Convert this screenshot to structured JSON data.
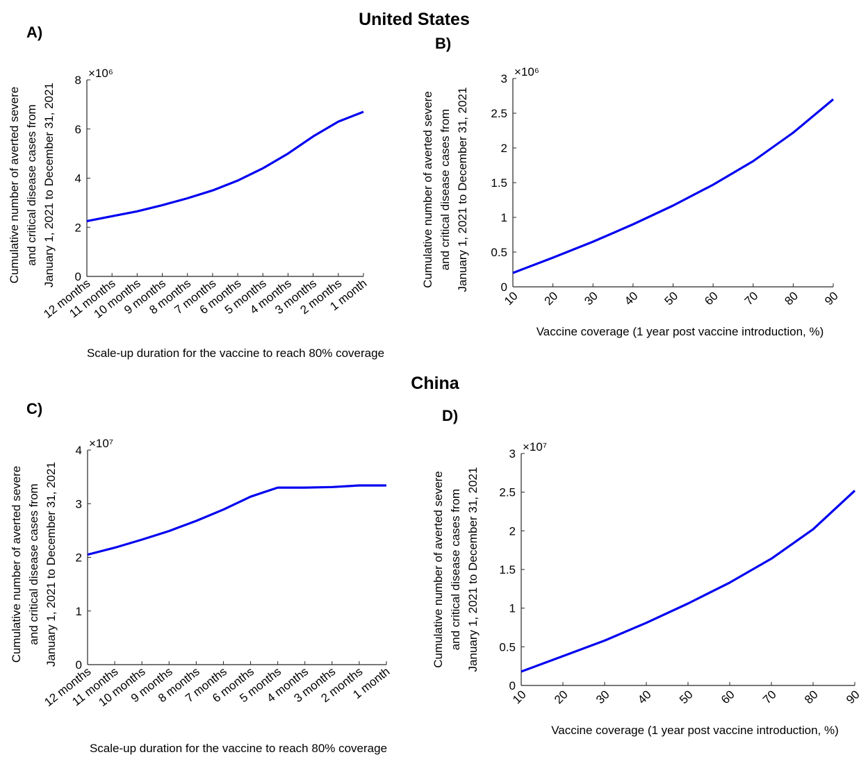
{
  "sections": {
    "top_title": "United States",
    "bottom_title": "China"
  },
  "chart_data": [
    {
      "id": "A",
      "panel_label": "A)",
      "type": "line",
      "categories": [
        "12 months",
        "11 months",
        "10 months",
        "9 months",
        "8 months",
        "7 months",
        "6 months",
        "5 months",
        "4 months",
        "3 months",
        "2 months",
        "1 month"
      ],
      "values": [
        2.25,
        2.45,
        2.65,
        2.9,
        3.18,
        3.5,
        3.9,
        4.4,
        5.0,
        5.7,
        6.3,
        6.7
      ],
      "yticks": [
        "0",
        "2",
        "4",
        "6",
        "8"
      ],
      "ylim": [
        0,
        8
      ],
      "exponent_label": "×10⁶",
      "xlabel": "Scale-up duration for the vaccine to reach 80% coverage",
      "ylabel_lines": [
        "Cumulative number of averted severe",
        "and critical disease cases from",
        "January 1, 2021 to December 31, 2021"
      ],
      "line_color": "#0000f0"
    },
    {
      "id": "B",
      "panel_label": "B)",
      "type": "line",
      "x": [
        10,
        20,
        30,
        40,
        50,
        60,
        70,
        80,
        90
      ],
      "values": [
        0.2,
        0.42,
        0.65,
        0.9,
        1.17,
        1.47,
        1.81,
        2.22,
        2.7
      ],
      "xticks": [
        "10",
        "20",
        "30",
        "40",
        "50",
        "60",
        "70",
        "80",
        "90"
      ],
      "yticks": [
        "0",
        "0.5",
        "1",
        "1.5",
        "2",
        "2.5",
        "3"
      ],
      "ylim": [
        0,
        3
      ],
      "exponent_label": "×10⁶",
      "xlabel": "Vaccine coverage (1 year post vaccine introduction, %)",
      "ylabel_lines": [
        "Cumulative number of averted severe",
        "and critical disease cases from",
        "January 1, 2021 to December 31, 2021"
      ],
      "line_color": "#0000f0"
    },
    {
      "id": "C",
      "panel_label": "C)",
      "type": "line",
      "categories": [
        "12 months",
        "11 months",
        "10 months",
        "9 months",
        "8 months",
        "7 months",
        "6 months",
        "5 months",
        "4 months",
        "3 months",
        "2 months",
        "1 month"
      ],
      "values": [
        2.05,
        2.18,
        2.33,
        2.49,
        2.68,
        2.89,
        3.13,
        3.3,
        3.3,
        3.31,
        3.34,
        3.34
      ],
      "yticks": [
        "0",
        "1",
        "2",
        "3",
        "4"
      ],
      "ylim": [
        0,
        4
      ],
      "exponent_label": "×10⁷",
      "xlabel": "Scale-up duration for the vaccine to reach 80% coverage",
      "ylabel_lines": [
        "Cumulative number of averted severe",
        "and critical disease cases from",
        "January 1, 2021 to December 31, 2021"
      ],
      "line_color": "#0000f0"
    },
    {
      "id": "D",
      "panel_label": "D)",
      "type": "line",
      "x": [
        10,
        20,
        30,
        40,
        50,
        60,
        70,
        80,
        90
      ],
      "values": [
        0.18,
        0.38,
        0.58,
        0.81,
        1.06,
        1.33,
        1.64,
        2.02,
        2.52
      ],
      "xticks": [
        "10",
        "20",
        "30",
        "40",
        "50",
        "60",
        "70",
        "80",
        "90"
      ],
      "yticks": [
        "0",
        "0.5",
        "1",
        "1.5",
        "2",
        "2.5",
        "3"
      ],
      "ylim": [
        0,
        3
      ],
      "exponent_label": "×10⁷",
      "xlabel": "Vaccine coverage (1 year post vaccine introduction, %)",
      "ylabel_lines": [
        "Cumulative number of averted severe",
        "and critical disease cases from",
        "January 1, 2021 to December 31, 2021"
      ],
      "line_color": "#0000f0"
    }
  ]
}
